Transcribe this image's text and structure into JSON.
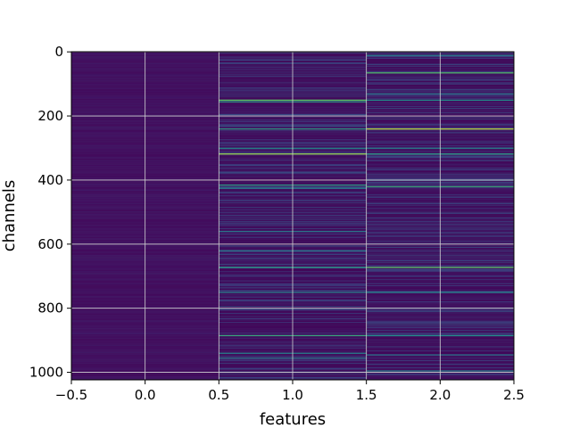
{
  "chart_data": {
    "type": "heatmap",
    "title": "",
    "xlabel": "features",
    "ylabel": "channels",
    "xlim": [
      -0.5,
      2.5
    ],
    "ylim": [
      1023.5,
      -0.5
    ],
    "n_rows": 1024,
    "n_cols": 3,
    "x_ticks": [
      -0.5,
      0.0,
      0.5,
      1.0,
      1.5,
      2.0,
      2.5
    ],
    "x_tick_labels": [
      "−0.5",
      "0.0",
      "0.5",
      "1.0",
      "1.5",
      "2.0",
      "2.5"
    ],
    "y_ticks": [
      0,
      200,
      400,
      600,
      800,
      1000
    ],
    "y_tick_labels": [
      "0",
      "200",
      "400",
      "600",
      "800",
      "1000"
    ],
    "grid": true,
    "colormap": "viridis",
    "colors": {
      "background_col0": "#46156a",
      "background_cols12": "#3d0f5e",
      "grid": "#d0d0d0"
    },
    "bright_rows": {
      "col1": [
        {
          "row": 150,
          "value": 0.75
        },
        {
          "row": 155,
          "value": 0.55
        },
        {
          "row": 240,
          "value": 0.55
        },
        {
          "row": 300,
          "value": 0.5
        },
        {
          "row": 318,
          "value": 0.85
        },
        {
          "row": 415,
          "value": 0.55
        },
        {
          "row": 425,
          "value": 0.45
        },
        {
          "row": 560,
          "value": 0.4
        },
        {
          "row": 620,
          "value": 0.4
        },
        {
          "row": 672,
          "value": 0.55
        },
        {
          "row": 750,
          "value": 0.45
        },
        {
          "row": 885,
          "value": 0.6
        },
        {
          "row": 940,
          "value": 0.45
        },
        {
          "row": 955,
          "value": 0.4
        }
      ],
      "col2": [
        {
          "row": 10,
          "value": 0.45
        },
        {
          "row": 65,
          "value": 0.7
        },
        {
          "row": 130,
          "value": 0.4
        },
        {
          "row": 150,
          "value": 0.5
        },
        {
          "row": 240,
          "value": 0.9
        },
        {
          "row": 300,
          "value": 0.45
        },
        {
          "row": 318,
          "value": 0.55
        },
        {
          "row": 420,
          "value": 0.6
        },
        {
          "row": 672,
          "value": 0.75
        },
        {
          "row": 750,
          "value": 0.45
        },
        {
          "row": 885,
          "value": 0.5
        },
        {
          "row": 945,
          "value": 0.4
        },
        {
          "row": 995,
          "value": 0.45
        }
      ]
    }
  }
}
